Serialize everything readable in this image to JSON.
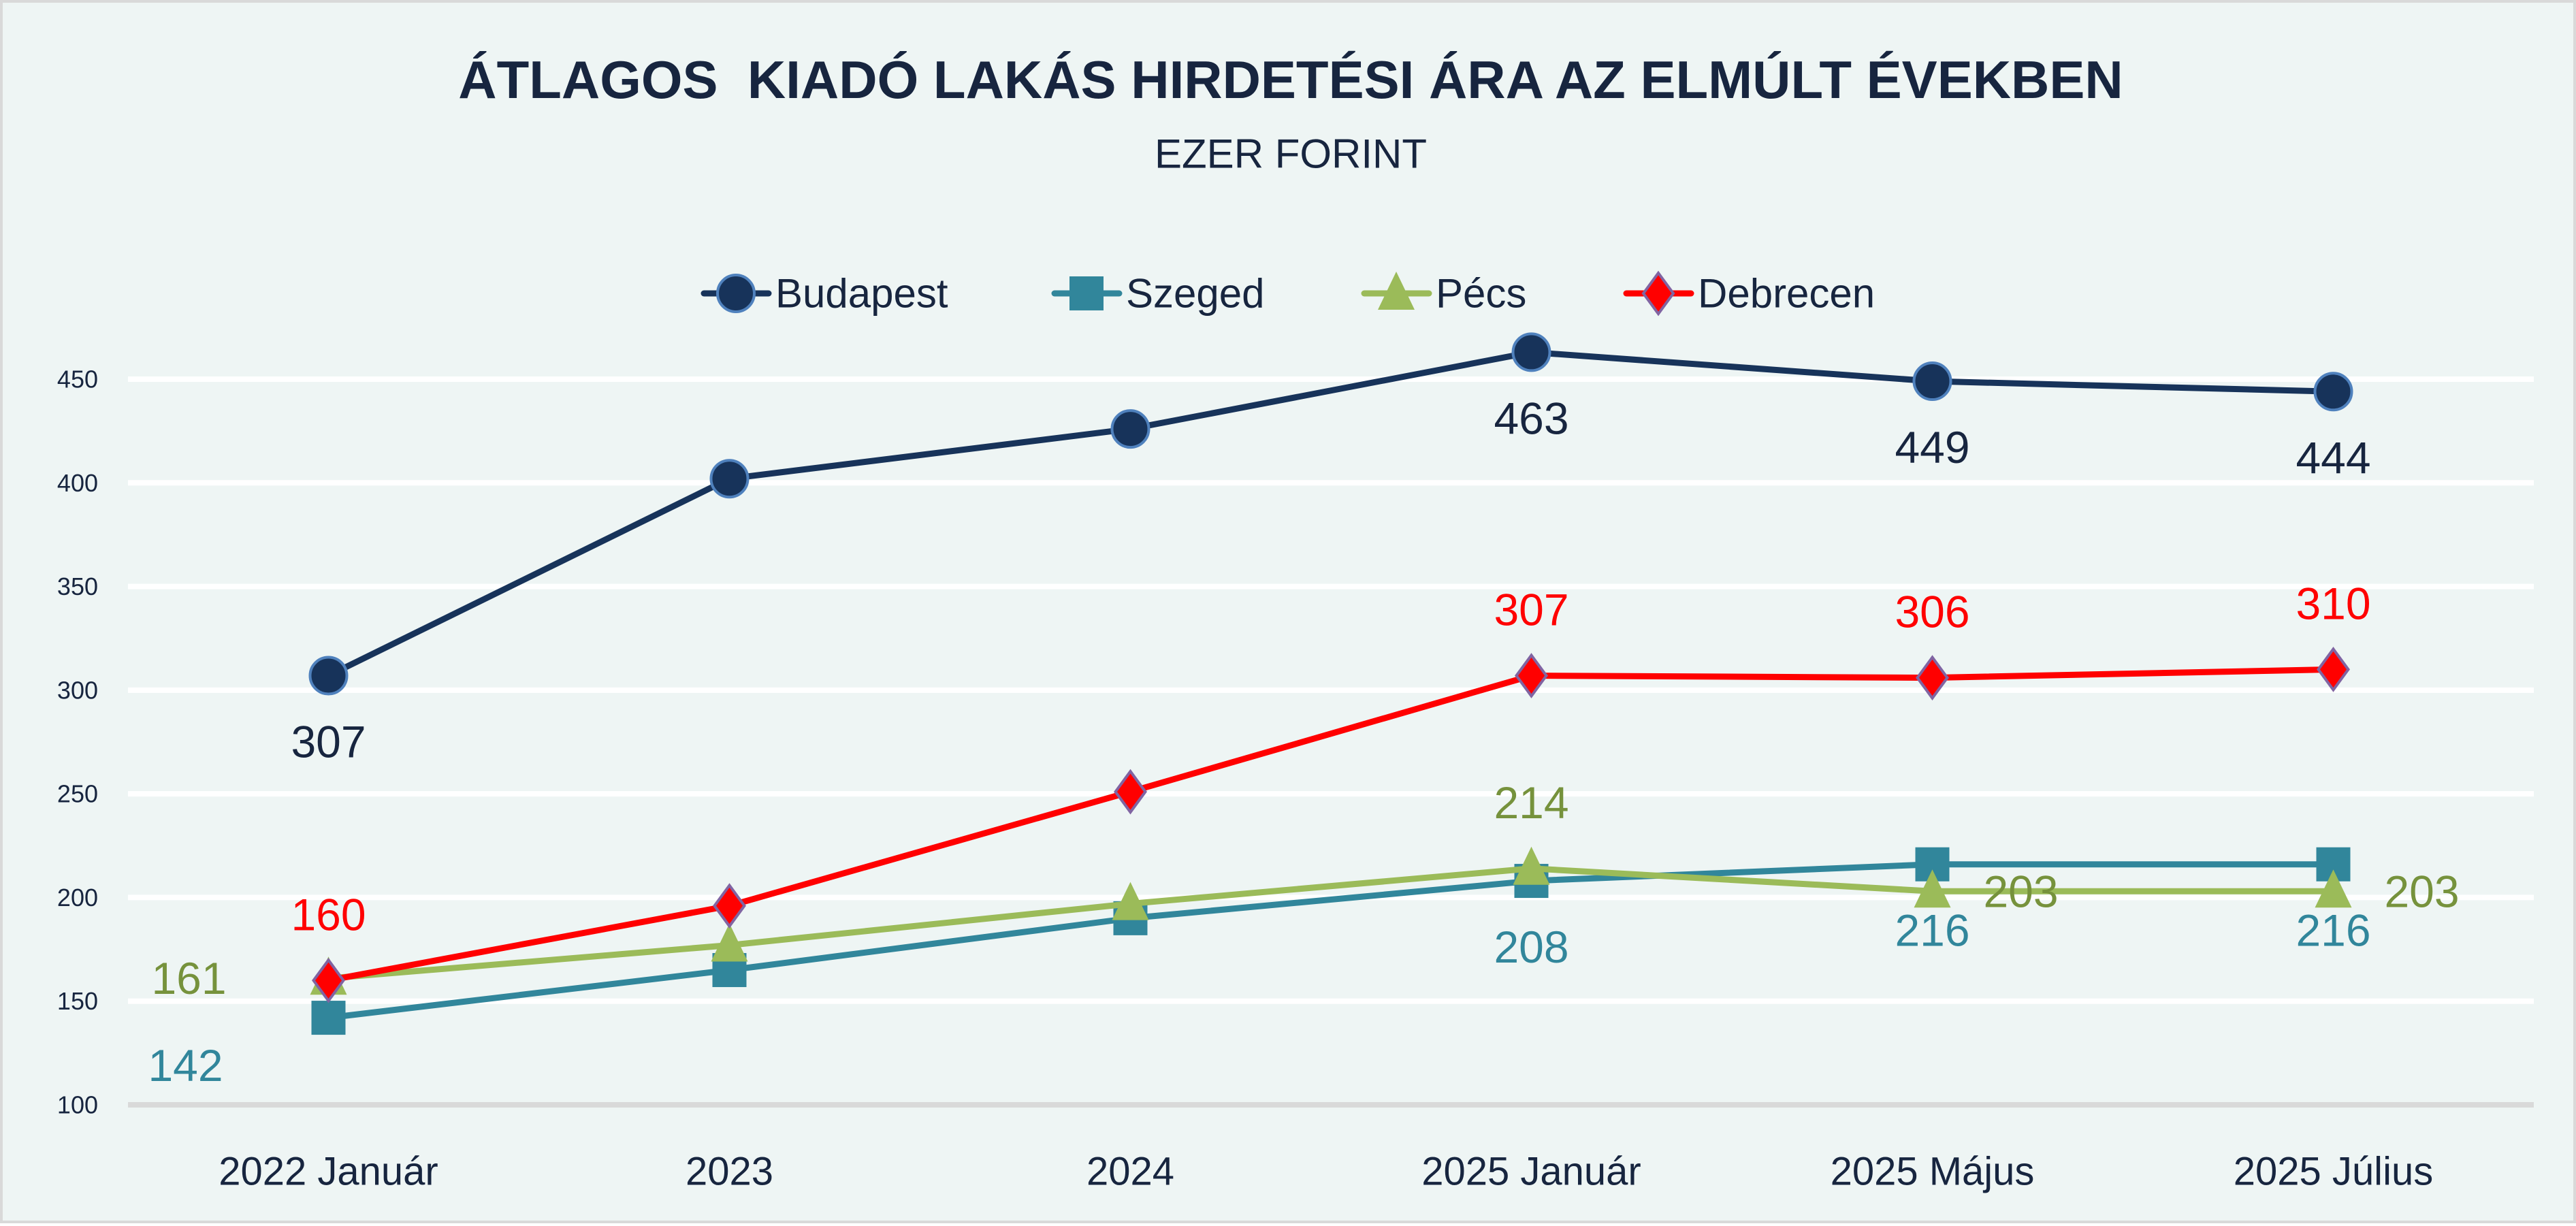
{
  "chart_data": {
    "type": "line",
    "title": "ÁTLAGOS  KIADÓ LAKÁS HIRDETÉSI ÁRA AZ ELMÚLT ÉVEKBEN",
    "subtitle": "EZER FORINT",
    "xlabel": "",
    "ylabel": "",
    "ylim": [
      100,
      450
    ],
    "yticks": [
      100,
      150,
      200,
      250,
      300,
      350,
      400,
      450
    ],
    "grid": true,
    "legend_position": "top",
    "categories": [
      "2022 Január",
      "2023",
      "2024",
      "2025 Január",
      "2025 Május",
      "2025 Július"
    ],
    "series": [
      {
        "name": "Budapest",
        "color": "#17335a",
        "marker": "circle",
        "label_color": "#17253f",
        "label_pos": [
          "below",
          "below",
          "below",
          "below",
          "below",
          "below"
        ],
        "values": [
          307,
          402,
          426,
          463,
          449,
          444
        ],
        "labels": [
          "307",
          null,
          null,
          "463",
          "449",
          "444"
        ]
      },
      {
        "name": "Szeged",
        "color": "#31869b",
        "marker": "square",
        "label_color": "#31869b",
        "label_pos": [
          "below-left",
          "below",
          "below",
          "below",
          "below",
          "below"
        ],
        "values": [
          142,
          165,
          190,
          208,
          216,
          216
        ],
        "labels": [
          "142",
          null,
          null,
          "208",
          "216",
          "216"
        ]
      },
      {
        "name": "Pécs",
        "color": "#9bbb59",
        "marker": "triangle",
        "label_color": "#76923c",
        "label_pos": [
          "left",
          "above",
          "above",
          "above",
          "right",
          "right"
        ],
        "values": [
          161,
          177,
          197,
          214,
          203,
          203
        ],
        "labels": [
          "161",
          null,
          null,
          "214",
          "203",
          "203"
        ]
      },
      {
        "name": "Debrecen",
        "color": "#ff0000",
        "marker": "diamond",
        "label_color": "#ff0000",
        "label_pos": [
          "above",
          "above",
          "above",
          "above",
          "above",
          "above"
        ],
        "values": [
          160,
          196,
          251,
          307,
          306,
          310
        ],
        "labels": [
          "160",
          null,
          null,
          "307",
          "306",
          "310"
        ]
      }
    ]
  }
}
